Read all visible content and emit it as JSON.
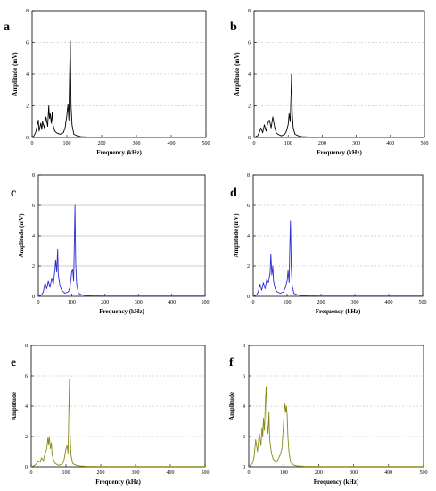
{
  "figure": {
    "panels": [
      {
        "letter": "a",
        "color": "#000000",
        "grid_style": "dashed"
      },
      {
        "letter": "b",
        "color": "#000000",
        "grid_style": "dashed"
      },
      {
        "letter": "c",
        "color": "#2b2bd0",
        "grid_style": "solid"
      },
      {
        "letter": "d",
        "color": "#2b2bd0",
        "grid_style": "dashed"
      },
      {
        "letter": "e",
        "color": "#8a8a1a",
        "grid_style": "dashed"
      },
      {
        "letter": "f",
        "color": "#8a8a1a",
        "grid_style": "dashed"
      }
    ]
  },
  "chart_data": [
    {
      "type": "line",
      "panel": "a",
      "xlabel": "Frequency (kHz)",
      "ylabel": "Amplitude (mV)",
      "xlim": [
        0,
        500
      ],
      "ylim": [
        0,
        8
      ],
      "xticks": [
        0,
        100,
        200,
        300,
        400,
        500
      ],
      "yticks": [
        0,
        2,
        4,
        6,
        8
      ],
      "grid": true,
      "color": "#000000",
      "x": [
        0,
        5,
        10,
        15,
        18,
        20,
        25,
        28,
        30,
        35,
        40,
        45,
        48,
        50,
        52,
        55,
        58,
        60,
        65,
        70,
        80,
        90,
        95,
        100,
        103,
        106,
        108,
        110,
        112,
        115,
        120,
        130,
        140,
        160,
        200,
        300,
        400,
        500
      ],
      "y": [
        0,
        0.1,
        0.3,
        0.8,
        1.1,
        0.4,
        0.9,
        0.5,
        1.0,
        0.6,
        1.3,
        0.7,
        2.0,
        1.2,
        1.5,
        0.9,
        1.6,
        0.8,
        0.4,
        0.3,
        0.2,
        0.3,
        0.6,
        1.4,
        2.1,
        1.1,
        4.0,
        6.1,
        2.0,
        0.8,
        0.2,
        0.1,
        0.05,
        0.03,
        0.02,
        0.02,
        0.02,
        0.02
      ]
    },
    {
      "type": "line",
      "panel": "b",
      "xlabel": "Frequency (kHz)",
      "ylabel": "Amplitude (mV)",
      "xlim": [
        0,
        500
      ],
      "ylim": [
        0,
        8
      ],
      "xticks": [
        0,
        100,
        200,
        300,
        400,
        500
      ],
      "yticks": [
        0,
        2,
        4,
        6,
        8
      ],
      "grid": true,
      "color": "#000000",
      "x": [
        0,
        10,
        15,
        20,
        25,
        30,
        35,
        40,
        45,
        50,
        55,
        60,
        65,
        70,
        80,
        90,
        95,
        100,
        103,
        106,
        108,
        110,
        112,
        115,
        120,
        130,
        140,
        160,
        200,
        300,
        400,
        500
      ],
      "y": [
        0,
        0.1,
        0.3,
        0.6,
        0.3,
        0.8,
        0.4,
        0.9,
        1.1,
        0.6,
        1.3,
        0.7,
        0.3,
        0.2,
        0.1,
        0.2,
        0.4,
        0.8,
        1.5,
        1.0,
        2.5,
        4.0,
        1.5,
        0.6,
        0.2,
        0.1,
        0.05,
        0.03,
        0.02,
        0.02,
        0.02,
        0.02
      ]
    },
    {
      "type": "line",
      "panel": "c",
      "xlabel": "Frequency (kHz)",
      "ylabel": "Amplitude (mV)",
      "xlim": [
        0,
        500
      ],
      "ylim": [
        0,
        8
      ],
      "xticks": [
        0,
        100,
        200,
        300,
        400,
        500
      ],
      "yticks": [
        0,
        2,
        4,
        6,
        8
      ],
      "grid": true,
      "color": "#2b2bd0",
      "x": [
        0,
        10,
        15,
        20,
        25,
        30,
        35,
        40,
        45,
        50,
        52,
        55,
        58,
        60,
        65,
        70,
        80,
        90,
        95,
        100,
        103,
        106,
        108,
        110,
        112,
        115,
        120,
        130,
        140,
        160,
        200,
        300,
        400,
        500
      ],
      "y": [
        0,
        0.1,
        0.3,
        0.9,
        0.5,
        1.0,
        0.6,
        1.2,
        0.8,
        1.8,
        2.4,
        1.6,
        3.1,
        1.4,
        0.7,
        0.4,
        0.2,
        0.3,
        0.6,
        1.6,
        1.8,
        1.0,
        3.5,
        6.0,
        2.2,
        0.8,
        0.2,
        0.1,
        0.05,
        0.03,
        0.02,
        0.02,
        0.02,
        0.02
      ]
    },
    {
      "type": "line",
      "panel": "d",
      "xlabel": "Frequency (kHz)",
      "ylabel": "Amplitude (mV)",
      "xlim": [
        0,
        500
      ],
      "ylim": [
        0,
        8
      ],
      "xticks": [
        0,
        100,
        200,
        300,
        400,
        500
      ],
      "yticks": [
        0,
        2,
        4,
        6,
        8
      ],
      "grid": true,
      "color": "#2b2bd0",
      "x": [
        0,
        10,
        15,
        20,
        25,
        30,
        35,
        40,
        45,
        50,
        52,
        55,
        58,
        60,
        65,
        70,
        80,
        90,
        95,
        100,
        103,
        106,
        108,
        110,
        112,
        115,
        120,
        130,
        140,
        160,
        200,
        300,
        400,
        500
      ],
      "y": [
        0,
        0.1,
        0.3,
        0.8,
        0.4,
        0.9,
        0.5,
        1.1,
        0.9,
        1.6,
        2.8,
        1.4,
        2.0,
        1.0,
        0.5,
        0.3,
        0.2,
        0.3,
        0.6,
        1.0,
        1.7,
        0.9,
        3.2,
        5.0,
        2.0,
        0.7,
        0.2,
        0.1,
        0.05,
        0.03,
        0.02,
        0.02,
        0.02,
        0.02
      ]
    },
    {
      "type": "line",
      "panel": "e",
      "xlabel": "Frequency (kHz)",
      "ylabel": "Amplitude",
      "xlim": [
        0,
        500
      ],
      "ylim": [
        0,
        8
      ],
      "xticks": [
        0,
        100,
        200,
        300,
        400,
        500
      ],
      "yticks": [
        0,
        2,
        4,
        6,
        8
      ],
      "grid": true,
      "color": "#8a8a1a",
      "x": [
        0,
        10,
        15,
        20,
        25,
        30,
        35,
        40,
        45,
        48,
        50,
        52,
        55,
        58,
        60,
        65,
        70,
        80,
        90,
        95,
        100,
        103,
        106,
        108,
        110,
        112,
        115,
        120,
        130,
        140,
        160,
        200,
        300,
        400,
        500
      ],
      "y": [
        0,
        0.1,
        0.2,
        0.4,
        0.3,
        0.6,
        0.4,
        0.9,
        1.2,
        1.9,
        1.5,
        2.0,
        1.2,
        1.6,
        0.8,
        0.4,
        0.2,
        0.1,
        0.2,
        0.5,
        1.2,
        1.4,
        0.9,
        3.2,
        5.8,
        2.0,
        0.7,
        0.2,
        0.1,
        0.05,
        0.03,
        0.02,
        0.02,
        0.02,
        0.02
      ]
    },
    {
      "type": "line",
      "panel": "f",
      "xlabel": "Frequency (kHz)",
      "ylabel": "Amplitude",
      "xlim": [
        0,
        500
      ],
      "ylim": [
        0,
        8
      ],
      "xticks": [
        0,
        100,
        200,
        300,
        400,
        500
      ],
      "yticks": [
        0,
        2,
        4,
        6,
        8
      ],
      "grid": true,
      "color": "#8a8a1a",
      "x": [
        0,
        10,
        15,
        20,
        25,
        30,
        35,
        38,
        40,
        42,
        45,
        48,
        50,
        52,
        55,
        58,
        60,
        65,
        70,
        80,
        90,
        95,
        100,
        103,
        106,
        108,
        110,
        112,
        115,
        120,
        130,
        140,
        160,
        200,
        300,
        400,
        500
      ],
      "y": [
        0,
        0.2,
        0.6,
        1.8,
        1.0,
        2.2,
        1.4,
        2.6,
        2.0,
        3.2,
        2.4,
        4.5,
        5.3,
        3.0,
        2.2,
        3.6,
        1.8,
        0.9,
        0.5,
        0.3,
        0.8,
        1.2,
        3.0,
        4.2,
        3.6,
        4.0,
        3.4,
        2.0,
        1.0,
        0.3,
        0.1,
        0.05,
        0.03,
        0.02,
        0.02,
        0.02,
        0.02
      ]
    }
  ]
}
